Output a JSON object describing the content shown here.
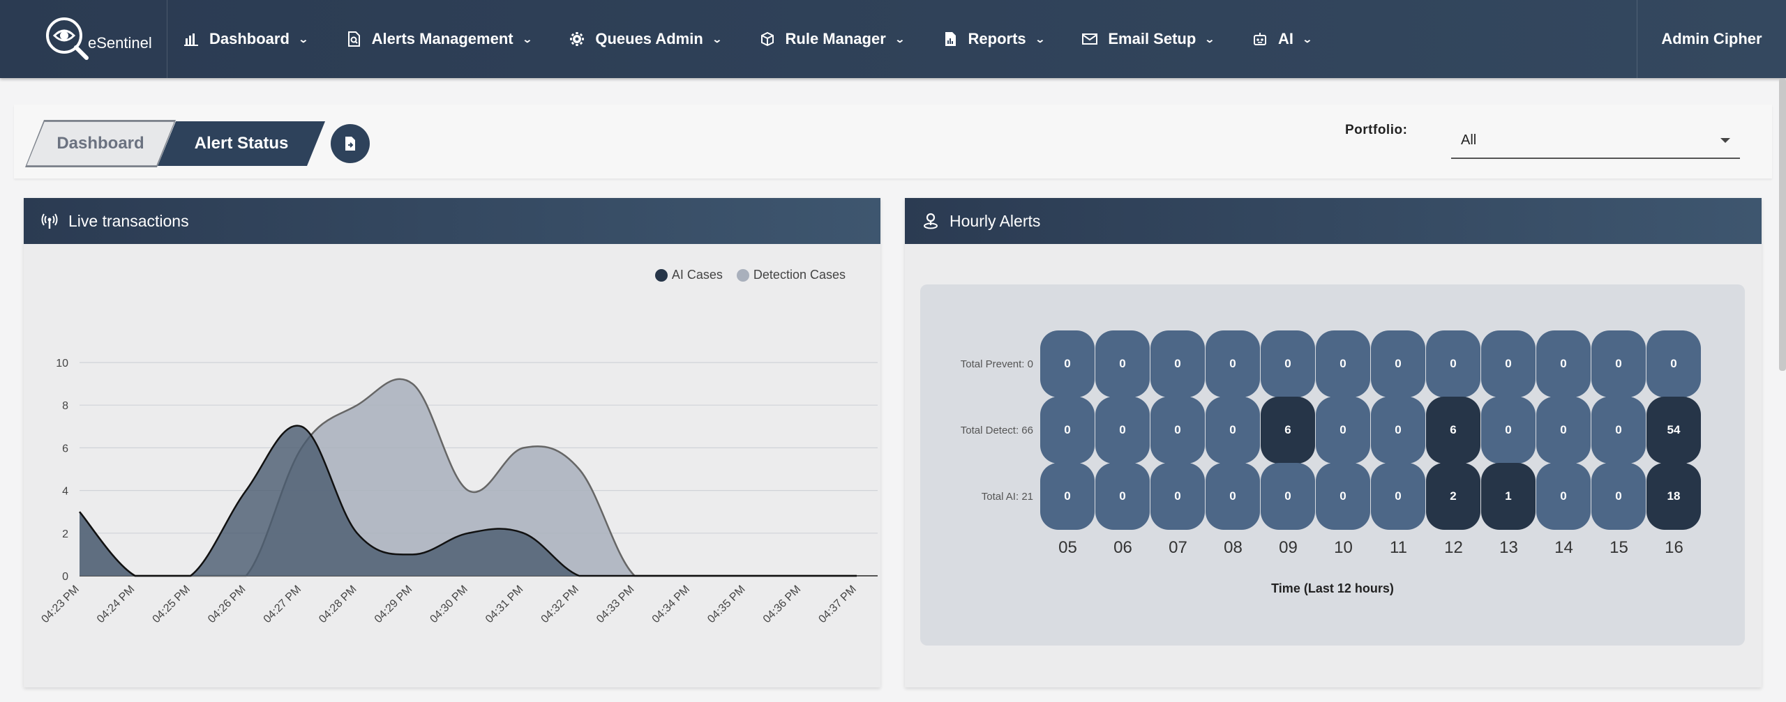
{
  "brand": {
    "name": "eSentinel"
  },
  "nav": {
    "items": [
      {
        "label": "Dashboard",
        "icon": "bar-chart-icon"
      },
      {
        "label": "Alerts Management",
        "icon": "file-search-icon"
      },
      {
        "label": "Queues Admin",
        "icon": "gear-icon"
      },
      {
        "label": "Rule Manager",
        "icon": "cube-icon"
      },
      {
        "label": "Reports",
        "icon": "file-chart-icon"
      },
      {
        "label": "Email Setup",
        "icon": "envelope-icon"
      },
      {
        "label": "AI",
        "icon": "robot-icon"
      }
    ],
    "user": "Admin Cipher"
  },
  "breadcrumb": {
    "first": "Dashboard",
    "second": "Alert Status"
  },
  "portfolio": {
    "label": "Portfolio:",
    "value": "All"
  },
  "live_panel": {
    "title": "Live transactions",
    "icon": "broadcast-icon"
  },
  "hourly_panel": {
    "title": "Hourly Alerts",
    "icon": "location-pin-icon"
  },
  "chart_data": [
    {
      "type": "area",
      "categories": [
        "04:23 PM",
        "04:24 PM",
        "04:25 PM",
        "04:26 PM",
        "04:27 PM",
        "04:28 PM",
        "04:29 PM",
        "04:30 PM",
        "04:31 PM",
        "04:32 PM",
        "04:33 PM",
        "04:34 PM",
        "04:35 PM",
        "04:36 PM",
        "04:37 PM"
      ],
      "series": [
        {
          "name": "AI Cases",
          "color": "#263548",
          "values": [
            3,
            0,
            0,
            4,
            7,
            2,
            1,
            2,
            2,
            0,
            0,
            0,
            0,
            0,
            0
          ]
        },
        {
          "name": "Detection Cases",
          "color": "#a9b0bc",
          "values": [
            3,
            0,
            0,
            0,
            6,
            8,
            9,
            4,
            6,
            5,
            0,
            0,
            0,
            0,
            0
          ]
        }
      ],
      "ylim": [
        0,
        10
      ],
      "yticks": [
        0,
        2,
        4,
        6,
        8,
        10
      ],
      "legend": "top-right",
      "grid": true
    },
    {
      "type": "heatmap",
      "xlabel": "Time (Last 12 hours)",
      "hours": [
        "05",
        "06",
        "07",
        "08",
        "09",
        "10",
        "11",
        "12",
        "13",
        "14",
        "15",
        "16"
      ],
      "rows": [
        {
          "label": "Total Prevent: 0",
          "values": [
            0,
            0,
            0,
            0,
            0,
            0,
            0,
            0,
            0,
            0,
            0,
            0
          ]
        },
        {
          "label": "Total Detect: 66",
          "values": [
            0,
            0,
            0,
            0,
            6,
            0,
            0,
            6,
            0,
            0,
            0,
            54
          ]
        },
        {
          "label": "Total AI: 21",
          "values": [
            0,
            0,
            0,
            0,
            0,
            0,
            0,
            2,
            1,
            0,
            0,
            18
          ]
        }
      ],
      "colors": {
        "zero": "#4d6787",
        "nonzero": "#263548"
      }
    }
  ]
}
